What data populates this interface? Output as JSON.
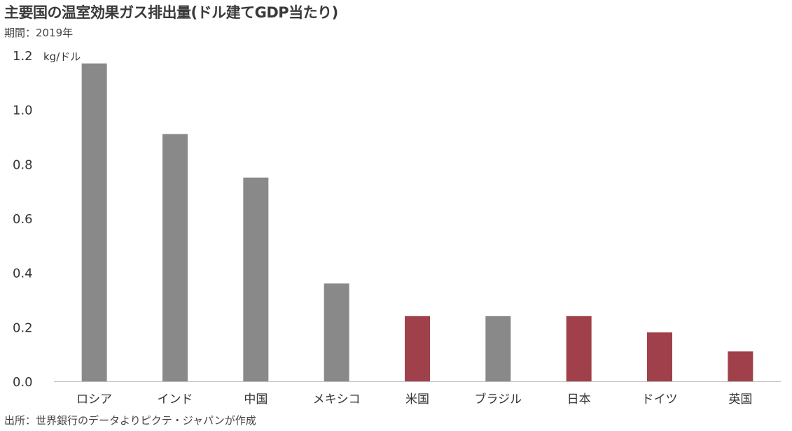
{
  "header": {
    "title": "主要国の温室効果ガス排出量(ドル建てGDP当たり)",
    "period": "期間：2019年"
  },
  "footer": {
    "source": "出所：世界銀行のデータよりピクテ・ジャパンが作成"
  },
  "chart_data": {
    "type": "bar",
    "title": "主要国の温室効果ガス排出量(ドル建てGDP当たり)",
    "unit_label": "kg/ドル",
    "categories": [
      "ロシア",
      "インド",
      "中国",
      "メキシコ",
      "米国",
      "ブラジル",
      "日本",
      "ドイツ",
      "英国"
    ],
    "values": [
      1.17,
      0.91,
      0.75,
      0.36,
      0.24,
      0.24,
      0.24,
      0.18,
      0.11
    ],
    "highlighted": [
      false,
      false,
      false,
      false,
      true,
      false,
      true,
      true,
      true
    ],
    "colors": {
      "default": "#898989",
      "highlight": "#a0404a",
      "axis": "#bfbfbf"
    },
    "ylim": [
      0,
      1.2
    ],
    "yticks": [
      "0.0",
      "0.2",
      "0.4",
      "0.6",
      "0.8",
      "1.0",
      "1.2"
    ],
    "grid": false,
    "legend": "none"
  }
}
